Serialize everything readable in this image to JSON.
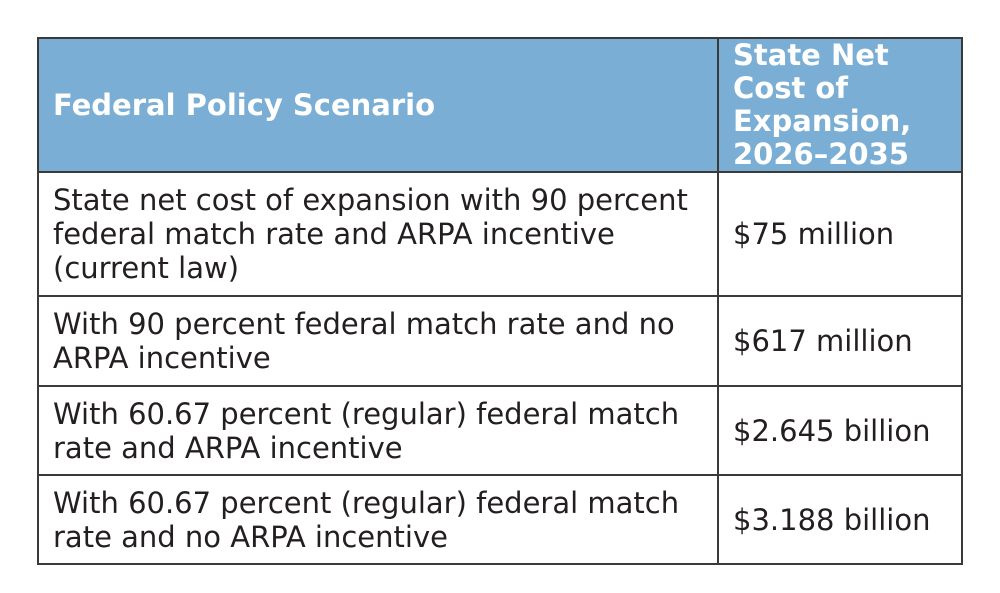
{
  "table": {
    "headers": {
      "scenario": "Federal Policy Scenario",
      "cost": "State Net Cost of Expansion, 2026–2035"
    },
    "rows": [
      {
        "scenario": "State net cost of expansion with 90 percent federal match rate and ARPA incentive (current law)",
        "cost": "$75 million"
      },
      {
        "scenario": "With 90 percent federal match rate and no ARPA incentive",
        "cost": "$617 million"
      },
      {
        "scenario": "With 60.67 percent (regular) federal match rate and ARPA incentive",
        "cost": "$2.645 billion"
      },
      {
        "scenario": "With 60.67 percent (regular) federal match rate and no ARPA incentive",
        "cost": "$3.188 billion"
      }
    ]
  },
  "colors": {
    "header_background": "#7aaed4",
    "header_text": "#ffffff",
    "border": "#3a3a3a",
    "body_text": "#231f20"
  }
}
